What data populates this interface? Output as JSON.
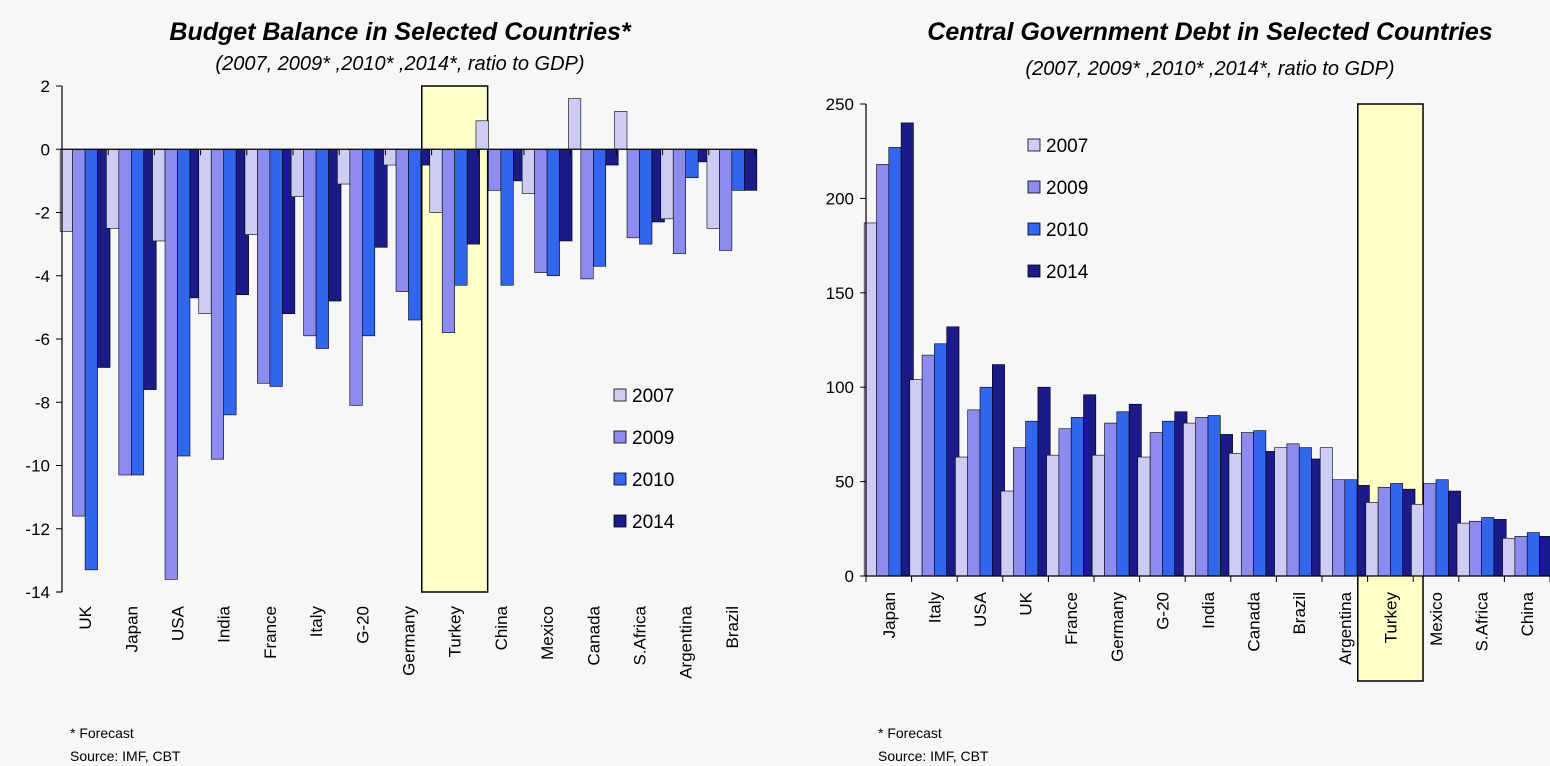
{
  "chart_data": [
    {
      "type": "bar",
      "title": "Budget Balance in Selected Countries*",
      "subtitle": "(2007, 2009* ,2010* ,2014*, ratio to GDP)",
      "categories": [
        "UK",
        "Japan",
        "USA",
        "India",
        "France",
        "Italy",
        "G-20",
        "Germany",
        "Turkey",
        "China",
        "Mexico",
        "Canada",
        "S.Africa",
        "Argentina",
        "Brazil"
      ],
      "series": [
        {
          "name": "2007",
          "color": "#ccccf5",
          "values": [
            -2.6,
            -2.5,
            -2.9,
            -5.2,
            -2.7,
            -1.5,
            -1.1,
            -0.5,
            -2.0,
            0.9,
            -1.4,
            1.6,
            1.2,
            -2.2,
            -2.5
          ]
        },
        {
          "name": "2009",
          "color": "#8b8bf0",
          "values": [
            -11.6,
            -10.3,
            -13.6,
            -9.8,
            -7.4,
            -5.9,
            -8.1,
            -4.5,
            -5.8,
            -1.3,
            -3.9,
            -4.1,
            -2.8,
            -3.3,
            -3.2
          ]
        },
        {
          "name": "2010",
          "color": "#3366ee",
          "values": [
            -13.3,
            -10.3,
            -9.7,
            -8.4,
            -7.5,
            -6.3,
            -5.9,
            -5.4,
            -4.3,
            -4.3,
            -4.0,
            -3.7,
            -3.0,
            -0.9,
            -1.3
          ]
        },
        {
          "name": "2014",
          "color": "#1a1a88",
          "values": [
            -6.9,
            -7.6,
            -4.7,
            -4.6,
            -5.2,
            -4.8,
            -3.1,
            -0.5,
            -3.0,
            -1.0,
            -2.9,
            -0.5,
            -2.3,
            -0.4,
            -1.3
          ]
        }
      ],
      "ylim": [
        -14,
        2
      ],
      "yticks": [
        "2",
        "0",
        "-2",
        "-4",
        "-6",
        "-8",
        "-10",
        "-12",
        "-14"
      ],
      "highlight_category": "Turkey",
      "highlight_color": "#ffffc8",
      "legend": "right",
      "grid": false
    },
    {
      "type": "bar",
      "title": "Central Government Debt in Selected Countries",
      "subtitle": "(2007, 2009* ,2010* ,2014*, ratio to GDP)",
      "categories": [
        "Japan",
        "Italy",
        "USA",
        "UK",
        "France",
        "Germany",
        "G-20",
        "India",
        "Canada",
        "Brazil",
        "Argentina",
        "Turkey",
        "Mexico",
        "S.Africa",
        "China"
      ],
      "series": [
        {
          "name": "2007",
          "color": "#ccccf5",
          "values": [
            187,
            104,
            63,
            45,
            64,
            64,
            63,
            81,
            65,
            68,
            68,
            39,
            38,
            28,
            20
          ]
        },
        {
          "name": "2009",
          "color": "#8b8bf0",
          "values": [
            218,
            117,
            88,
            68,
            78,
            81,
            76,
            84,
            76,
            70,
            51,
            47,
            49,
            29,
            21
          ]
        },
        {
          "name": "2010",
          "color": "#3366ee",
          "values": [
            227,
            123,
            100,
            82,
            84,
            87,
            82,
            85,
            77,
            68,
            51,
            49,
            51,
            31,
            23
          ]
        },
        {
          "name": "2014",
          "color": "#1a1a88",
          "values": [
            240,
            132,
            112,
            100,
            96,
            91,
            87,
            75,
            66,
            62,
            48,
            46,
            45,
            30,
            21
          ]
        }
      ],
      "ylim": [
        0,
        250
      ],
      "yticks": [
        "250",
        "200",
        "150",
        "100",
        "50",
        "0"
      ],
      "highlight_category": "Turkey",
      "highlight_color": "#ffffc8",
      "legend": "top-left",
      "grid": false
    }
  ],
  "footnotes": {
    "left": {
      "forecast": "* Forecast",
      "source": "Source: IMF, CBT"
    },
    "right": {
      "forecast": "* Forecast",
      "source": "Source: IMF, CBT"
    }
  }
}
